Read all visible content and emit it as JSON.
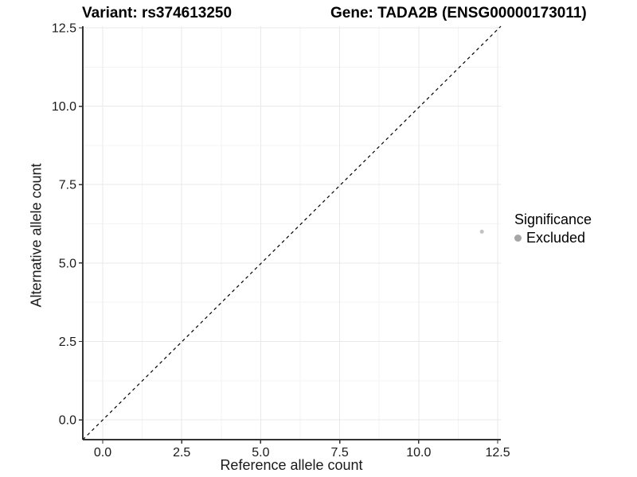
{
  "header": {
    "variant_title": "Variant: rs374613250",
    "gene_title": "Gene: TADA2B (ENSG00000173011)"
  },
  "chart_data": {
    "type": "scatter",
    "title": "Variant: rs374613250   Gene: TADA2B (ENSG00000173011)",
    "xlabel": "Reference allele count",
    "ylabel": "Alternative allele count",
    "xlim": [
      -0.63,
      12.6
    ],
    "ylim": [
      -0.63,
      12.55
    ],
    "x_ticks": [
      0.0,
      2.5,
      5.0,
      7.5,
      10.0,
      12.5
    ],
    "y_ticks": [
      0.0,
      2.5,
      5.0,
      7.5,
      10.0,
      12.5
    ],
    "x_tick_labels": [
      "0.0",
      "2.5",
      "5.0",
      "7.5",
      "10.0",
      "12.5"
    ],
    "y_tick_labels": [
      "0.0",
      "2.5",
      "5.0",
      "7.5",
      "10.0",
      "12.5"
    ],
    "minor_ticks": [
      1.25,
      3.75,
      6.25,
      8.75,
      11.25
    ],
    "grid": true,
    "reference_line": {
      "type": "identity",
      "style": "dashed",
      "color": "#000000"
    },
    "series": [
      {
        "name": "Excluded",
        "color": "#c2c2c2",
        "points": [
          {
            "x": 12,
            "y": 6
          }
        ]
      }
    ],
    "legend": {
      "title": "Significance",
      "position": "right",
      "items": [
        {
          "label": "Excluded",
          "color": "#a6a6a6"
        }
      ]
    }
  },
  "colors": {
    "background": "#ffffff",
    "title_text": "#000000",
    "axis_text": "#1a1a1a",
    "axis_line": "#333333",
    "major_grid": "#e9e9e9",
    "minor_grid": "#f3f3f3",
    "point": "#c2c2c2",
    "legend_key": "#a6a6a6",
    "reference_line": "#000000"
  }
}
